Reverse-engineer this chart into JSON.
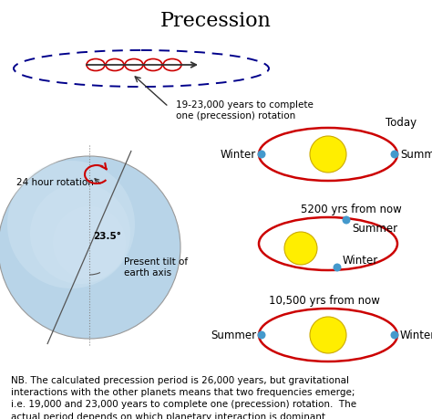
{
  "title": "Precession",
  "title_fontsize": 16,
  "background_color": "#ffffff",
  "text_color": "#000000",
  "top_arrow_text": "19-23,000 years to complete\none (precession) rotation",
  "rotation_label": "24 hour rotation",
  "tilt_label": "23.5°",
  "tilt_text": "Present tilt of\nearth axis",
  "note_text": "NB. The calculated precession period is 26,000 years, but gravitational\ninteractions with the other planets means that two frequencies emerge;\ni.e. 19,000 and 23,000 years to complete one (precession) rotation.  The\nactual period depends on which planetary interaction is dominant.",
  "note_fontsize": 7.5,
  "orbit_color": "#cc0000",
  "sun_color": "#ffee00",
  "sun_edge_color": "#ccaa00",
  "dot_color": "#4499cc",
  "earth_fill": "#b8d4e8",
  "earth_highlight": "#d8eaf5",
  "earth_edge": "#999999",
  "arrow_color": "#333333",
  "precession_loop_color": "#cc0000",
  "precession_oval_color": "#00008b",
  "label_fontsize": 8.5,
  "orbit_lw": 1.8
}
